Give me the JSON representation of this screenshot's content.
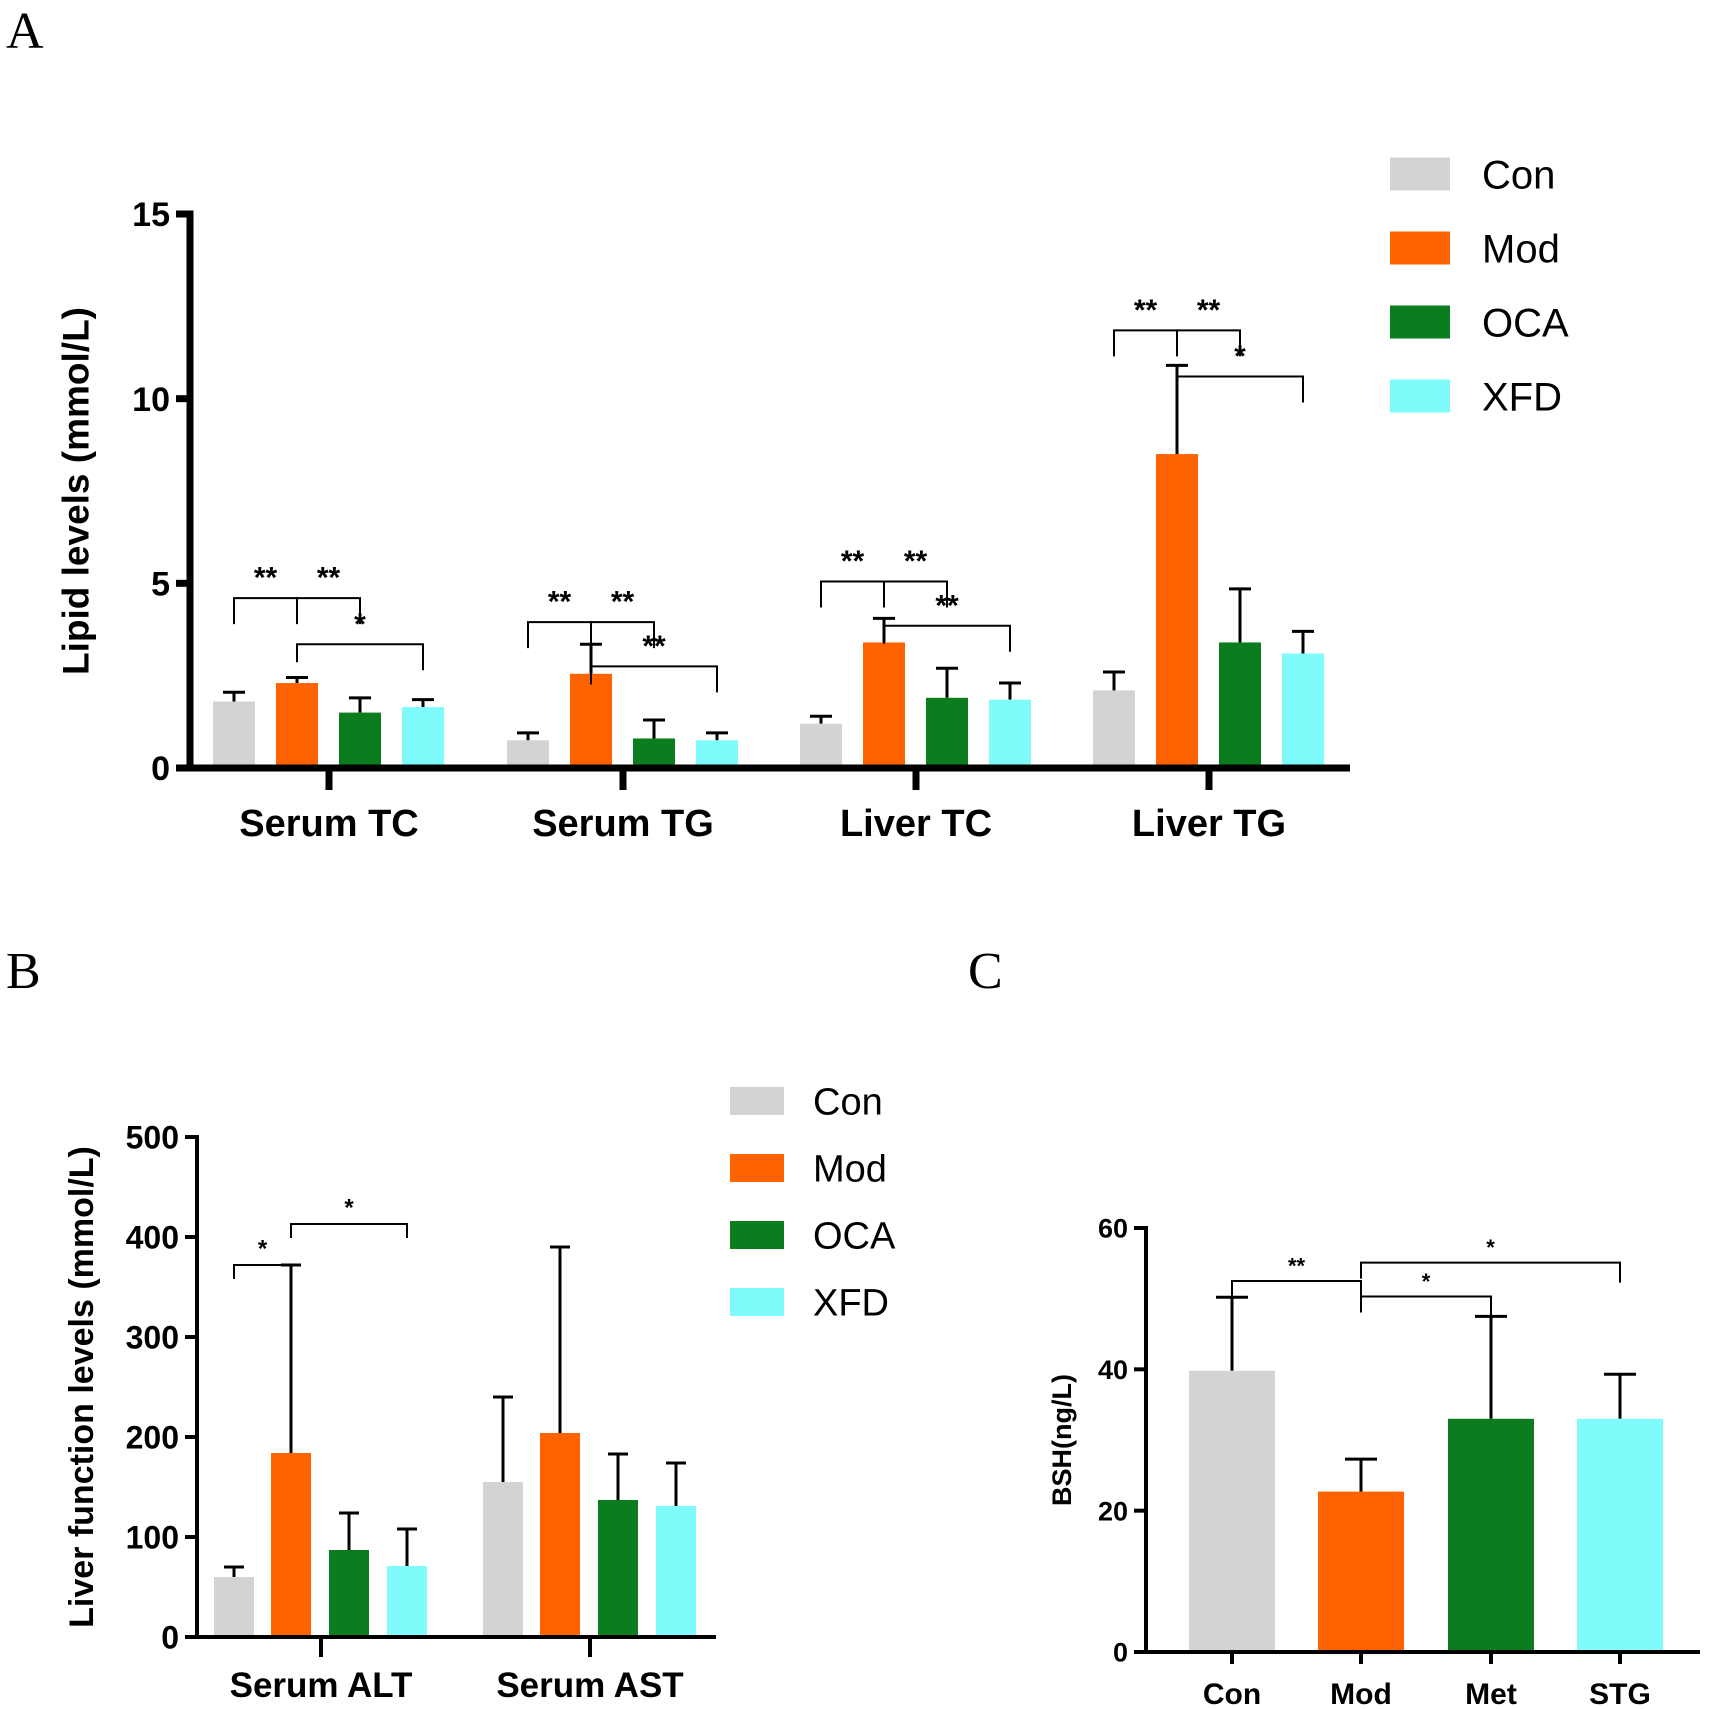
{
  "colors": {
    "Con": "#d3d3d3",
    "Mod": "#ff6300",
    "OCA": "#0b7d1e",
    "XFD": "#80fbfb",
    "Met": "#0b7d1e",
    "STG": "#80fbfb"
  },
  "chart_data": [
    {
      "panel": "A",
      "type": "bar",
      "ylabel": "Lipid levels (mmol/L)",
      "ylim": [
        0,
        15
      ],
      "yticks": [
        0,
        5,
        10,
        15
      ],
      "categories": [
        "Serum TC",
        "Serum TG",
        "Liver TC",
        "Liver TG"
      ],
      "series": [
        {
          "name": "Con",
          "values": [
            1.8,
            0.75,
            1.2,
            2.1
          ],
          "errors": [
            0.25,
            0.2,
            0.2,
            0.5
          ]
        },
        {
          "name": "Mod",
          "values": [
            2.3,
            2.55,
            3.4,
            8.5
          ],
          "errors": [
            0.15,
            0.8,
            0.65,
            2.4
          ]
        },
        {
          "name": "OCA",
          "values": [
            1.5,
            0.8,
            1.9,
            3.4
          ],
          "errors": [
            0.4,
            0.5,
            0.8,
            1.45
          ]
        },
        {
          "name": "XFD",
          "values": [
            1.65,
            0.75,
            1.85,
            3.1
          ],
          "errors": [
            0.2,
            0.2,
            0.45,
            0.6
          ]
        }
      ],
      "legend": [
        "Con",
        "Mod",
        "OCA",
        "XFD"
      ],
      "significance": [
        {
          "cat": 0,
          "from": 0,
          "to": 1,
          "level": 4.6,
          "label": "**"
        },
        {
          "cat": 0,
          "from": 1,
          "to": 2,
          "level": 4.6,
          "label": "**"
        },
        {
          "cat": 0,
          "from": 1,
          "to": 3,
          "level": 3.35,
          "label": "*"
        },
        {
          "cat": 1,
          "from": 0,
          "to": 1,
          "level": 3.95,
          "label": "**"
        },
        {
          "cat": 1,
          "from": 1,
          "to": 2,
          "level": 3.95,
          "label": "**"
        },
        {
          "cat": 1,
          "from": 1,
          "to": 3,
          "level": 2.75,
          "label": "**"
        },
        {
          "cat": 2,
          "from": 0,
          "to": 1,
          "level": 5.05,
          "label": "**"
        },
        {
          "cat": 2,
          "from": 1,
          "to": 2,
          "level": 5.05,
          "label": "**"
        },
        {
          "cat": 2,
          "from": 1,
          "to": 3,
          "level": 3.85,
          "label": "**"
        },
        {
          "cat": 3,
          "from": 0,
          "to": 1,
          "level": 11.85,
          "label": "**"
        },
        {
          "cat": 3,
          "from": 1,
          "to": 2,
          "level": 11.85,
          "label": "**"
        },
        {
          "cat": 3,
          "from": 1,
          "to": 3,
          "level": 10.6,
          "label": "*"
        }
      ]
    },
    {
      "panel": "B",
      "type": "bar",
      "ylabel": "Liver function levels (mmol/L)",
      "ylim": [
        0,
        500
      ],
      "yticks": [
        0,
        100,
        200,
        300,
        400,
        500
      ],
      "categories": [
        "Serum ALT",
        "Serum AST"
      ],
      "series": [
        {
          "name": "Con",
          "values": [
            60,
            155
          ],
          "errors": [
            10,
            85
          ]
        },
        {
          "name": "Mod",
          "values": [
            184,
            204
          ],
          "errors": [
            188,
            186
          ]
        },
        {
          "name": "OCA",
          "values": [
            87,
            137
          ],
          "errors": [
            37,
            46
          ]
        },
        {
          "name": "XFD",
          "values": [
            71,
            131
          ],
          "errors": [
            37,
            43
          ]
        }
      ],
      "legend": [
        "Con",
        "Mod",
        "OCA",
        "XFD"
      ],
      "significance": [
        {
          "cat": 0,
          "from": 0,
          "to": 1,
          "level": 372,
          "label": "*"
        },
        {
          "cat": 0,
          "from": 1,
          "to": 3,
          "level": 413,
          "label": "*"
        }
      ]
    },
    {
      "panel": "C",
      "type": "bar",
      "ylabel": "BSH(ng/L)",
      "ylim": [
        0,
        60
      ],
      "yticks": [
        0,
        20,
        40,
        60
      ],
      "categories": [
        "Con",
        "Mod",
        "Met",
        "STG"
      ],
      "values": [
        39.8,
        22.7,
        33,
        33
      ],
      "errors": [
        10.4,
        4.6,
        14.5,
        6.3
      ],
      "significance": [
        {
          "from": 0,
          "to": 1,
          "level": 52.5,
          "label": "**"
        },
        {
          "from": 1,
          "to": 2,
          "level": 50.3,
          "label": "*"
        },
        {
          "from": 1,
          "to": 3,
          "level": 55.1,
          "label": "*"
        }
      ]
    }
  ],
  "panel_labels": {
    "A": "A",
    "B": "B",
    "C": "C"
  }
}
